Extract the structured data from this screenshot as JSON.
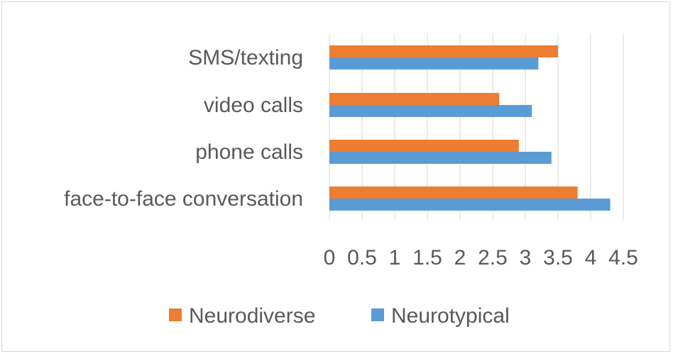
{
  "chart_data": {
    "type": "bar",
    "orientation": "horizontal",
    "categories": [
      "SMS/texting",
      "video calls",
      "phone calls",
      "face-to-face conversation"
    ],
    "series": [
      {
        "name": "Neurodiverse",
        "values": [
          3.5,
          2.6,
          2.9,
          3.8
        ],
        "color": "#ed7d31"
      },
      {
        "name": "Neurotypical",
        "values": [
          3.2,
          3.1,
          3.4,
          4.3
        ],
        "color": "#5b9bd5"
      }
    ],
    "ticks": [
      "0",
      "0.5",
      "1",
      "1.5",
      "2",
      "2.5",
      "3",
      "3.5",
      "4",
      "4.5"
    ],
    "xlim": [
      0,
      4.5
    ],
    "grid": true,
    "legend": "bottom"
  }
}
